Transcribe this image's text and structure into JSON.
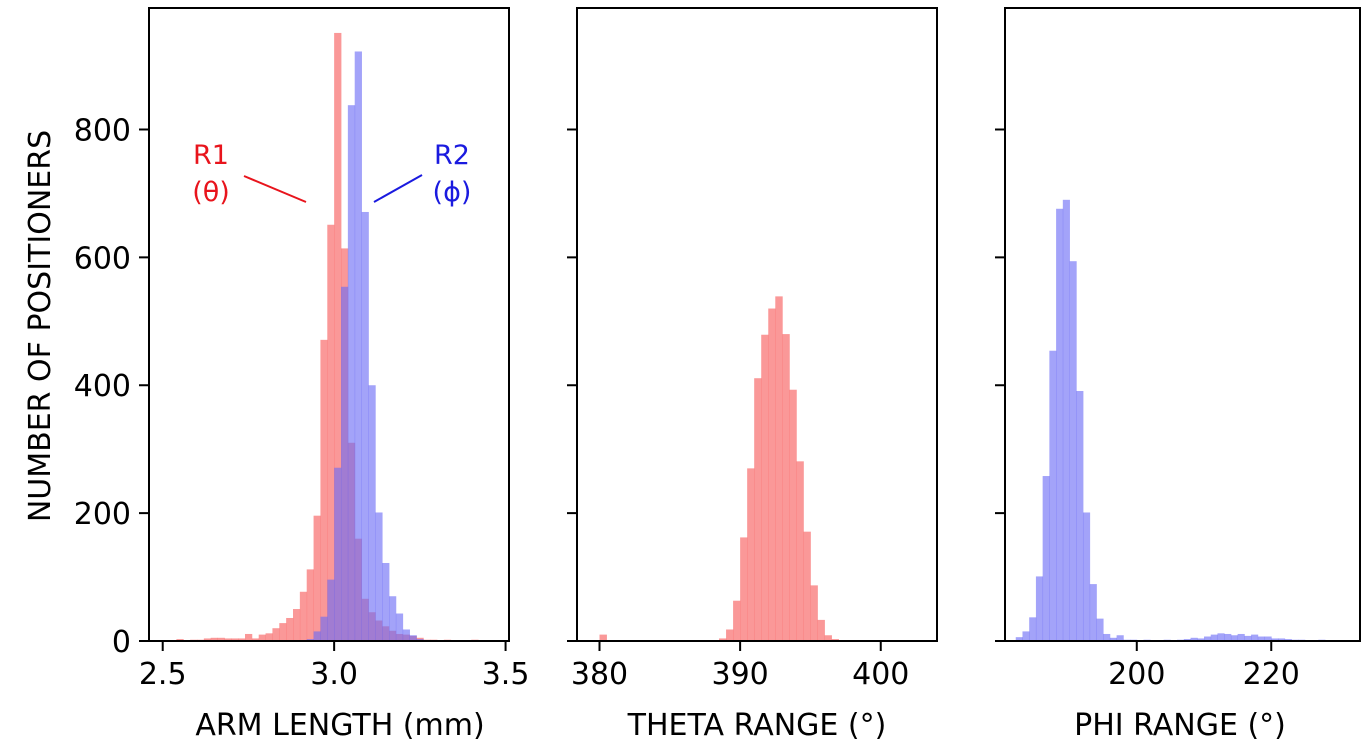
{
  "figure": {
    "ylabel": "NUMBER OF POSITIONERS"
  },
  "chart_data": [
    {
      "type": "histogram",
      "xlabel": "ARM LENGTH (mm)",
      "ylabel": "NUMBER OF POSITIONERS",
      "xlim": [
        2.46,
        3.51
      ],
      "ylim": [
        0,
        990
      ],
      "xticks": [
        "2.5",
        "3.0",
        "3.5"
      ],
      "yticks": [
        "0",
        "200",
        "400",
        "600",
        "800"
      ],
      "grid": false,
      "annotations": [
        {
          "lines": [
            "R1",
            "(θ)"
          ],
          "color": "#e8141c"
        },
        {
          "lines": [
            "R2",
            "(ϕ)"
          ],
          "color": "#1a1adf"
        }
      ],
      "series": [
        {
          "name": "R1 (θ)",
          "color": "#f87070",
          "opacity": 0.72,
          "bin_width": 0.02,
          "bins": [
            [
              2.54,
              3
            ],
            [
              2.56,
              1
            ],
            [
              2.58,
              2
            ],
            [
              2.6,
              2
            ],
            [
              2.62,
              4
            ],
            [
              2.64,
              5
            ],
            [
              2.66,
              5
            ],
            [
              2.68,
              4
            ],
            [
              2.7,
              4
            ],
            [
              2.72,
              4
            ],
            [
              2.74,
              11
            ],
            [
              2.76,
              4
            ],
            [
              2.78,
              10
            ],
            [
              2.8,
              12
            ],
            [
              2.82,
              20
            ],
            [
              2.84,
              28
            ],
            [
              2.86,
              36
            ],
            [
              2.88,
              50
            ],
            [
              2.9,
              77
            ],
            [
              2.92,
              112
            ],
            [
              2.94,
              196
            ],
            [
              2.96,
              471
            ],
            [
              2.98,
              651
            ],
            [
              3.0,
              951
            ],
            [
              3.02,
              614
            ],
            [
              3.04,
              310
            ],
            [
              3.06,
              160
            ],
            [
              3.08,
              66
            ],
            [
              3.1,
              45
            ],
            [
              3.12,
              32
            ],
            [
              3.14,
              23
            ],
            [
              3.16,
              16
            ],
            [
              3.18,
              11
            ],
            [
              3.2,
              10
            ],
            [
              3.22,
              8
            ],
            [
              3.24,
              5
            ],
            [
              3.26,
              2
            ],
            [
              3.28,
              2
            ],
            [
              3.3,
              1
            ],
            [
              3.32,
              2
            ],
            [
              3.36,
              1
            ],
            [
              3.4,
              2
            ],
            [
              3.44,
              1
            ]
          ]
        },
        {
          "name": "R2 (ϕ)",
          "color": "#6a6af6",
          "opacity": 0.62,
          "bin_width": 0.02,
          "bins": [
            [
              2.92,
              3
            ],
            [
              2.94,
              15
            ],
            [
              2.96,
              38
            ],
            [
              2.98,
              96
            ],
            [
              3.0,
              271
            ],
            [
              3.02,
              554
            ],
            [
              3.04,
              838
            ],
            [
              3.06,
              922
            ],
            [
              3.08,
              671
            ],
            [
              3.1,
              400
            ],
            [
              3.12,
              201
            ],
            [
              3.14,
              122
            ],
            [
              3.16,
              70
            ],
            [
              3.18,
              43
            ],
            [
              3.2,
              18
            ],
            [
              3.22,
              9
            ],
            [
              3.24,
              3
            ]
          ]
        }
      ]
    },
    {
      "type": "histogram",
      "xlabel": "THETA RANGE (°)",
      "xlim": [
        378.4,
        404.0
      ],
      "ylim": [
        0,
        990
      ],
      "xticks": [
        "380",
        "390",
        "400"
      ],
      "yticks": [
        "",
        "",
        "",
        "",
        ""
      ],
      "grid": false,
      "series": [
        {
          "name": "",
          "color": "#f87070",
          "opacity": 0.72,
          "bin_width": 0.5,
          "bins": [
            [
              380.0,
              10
            ],
            [
              388.5,
              4
            ],
            [
              389.0,
              18
            ],
            [
              389.5,
              63
            ],
            [
              390.0,
              162
            ],
            [
              390.5,
              270
            ],
            [
              391.0,
              411
            ],
            [
              391.5,
              479
            ],
            [
              392.0,
              520
            ],
            [
              392.5,
              539
            ],
            [
              393.0,
              480
            ],
            [
              393.5,
              393
            ],
            [
              394.0,
              281
            ],
            [
              394.5,
              171
            ],
            [
              395.0,
              87
            ],
            [
              395.5,
              33
            ],
            [
              396.0,
              9
            ],
            [
              396.5,
              3
            ]
          ]
        }
      ]
    },
    {
      "type": "histogram",
      "xlabel": "PHI RANGE (°)",
      "xlim": [
        180.4,
        233.2
      ],
      "ylim": [
        0,
        990
      ],
      "xticks": [
        "200",
        "220"
      ],
      "yticks": [
        "",
        "",
        "",
        "",
        ""
      ],
      "grid": false,
      "series": [
        {
          "name": "",
          "color": "#6a6af6",
          "opacity": 0.62,
          "bin_width": 1.0,
          "bins": [
            [
              182,
              6
            ],
            [
              183,
              15
            ],
            [
              184,
              37
            ],
            [
              185,
              101
            ],
            [
              186,
              258
            ],
            [
              187,
              454
            ],
            [
              188,
              676
            ],
            [
              189,
              690
            ],
            [
              190,
              594
            ],
            [
              191,
              391
            ],
            [
              192,
              201
            ],
            [
              193,
              89
            ],
            [
              194,
              35
            ],
            [
              195,
              11
            ],
            [
              196,
              5
            ],
            [
              197,
              9
            ],
            [
              198,
              2
            ],
            [
              199,
              2
            ],
            [
              200,
              1
            ],
            [
              201,
              2
            ],
            [
              202,
              1
            ],
            [
              203,
              1
            ],
            [
              204,
              2
            ],
            [
              205,
              1
            ],
            [
              206,
              2
            ],
            [
              207,
              3
            ],
            [
              208,
              5
            ],
            [
              209,
              4
            ],
            [
              210,
              7
            ],
            [
              211,
              10
            ],
            [
              212,
              12
            ],
            [
              213,
              11
            ],
            [
              214,
              9
            ],
            [
              215,
              11
            ],
            [
              216,
              8
            ],
            [
              217,
              10
            ],
            [
              218,
              7
            ],
            [
              219,
              7
            ],
            [
              220,
              4
            ],
            [
              221,
              4
            ],
            [
              222,
              3
            ],
            [
              223,
              2
            ],
            [
              224,
              2
            ],
            [
              227,
              2
            ]
          ]
        }
      ]
    }
  ]
}
